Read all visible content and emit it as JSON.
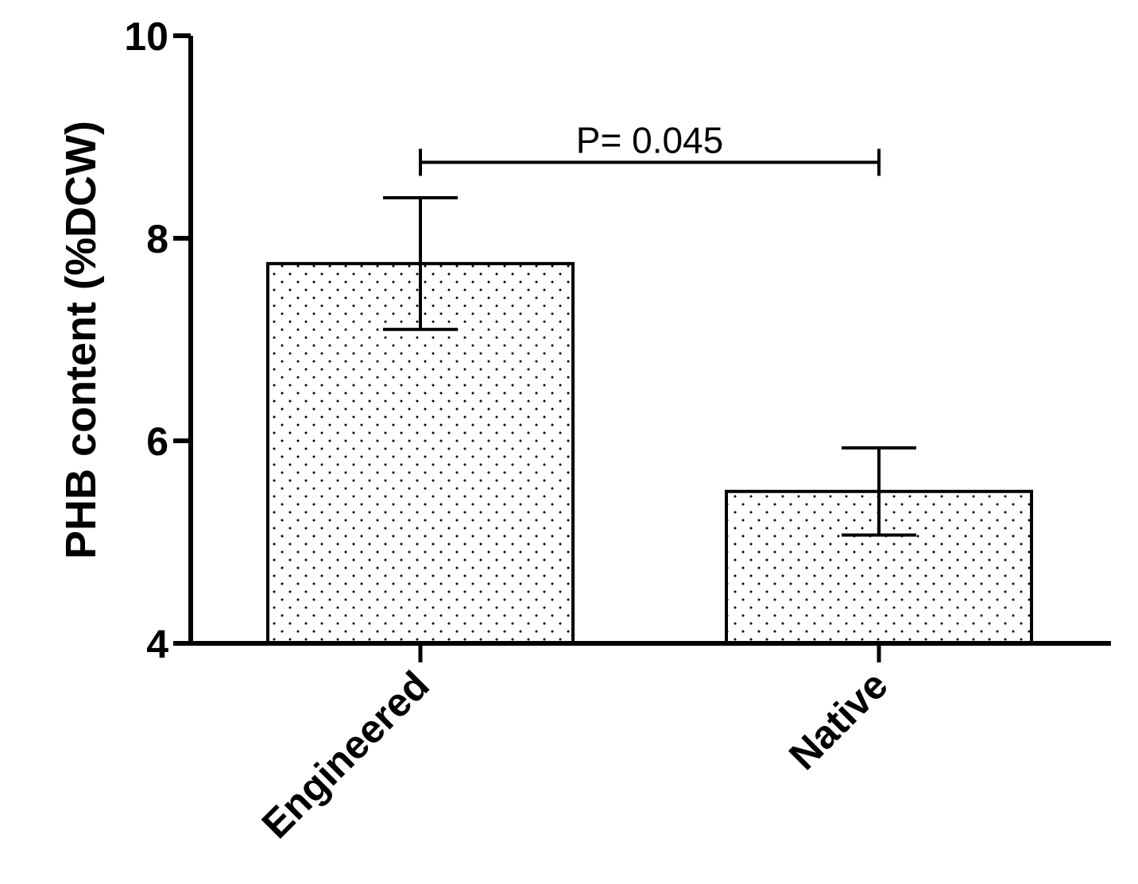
{
  "chart_data": {
    "type": "bar",
    "title": "",
    "xlabel": "",
    "ylabel": "PHB content (%DCW)",
    "ylim": [
      4,
      10
    ],
    "yticks": [
      4,
      6,
      8,
      10
    ],
    "grid": false,
    "pattern": "dotted",
    "categories": [
      "Engineered",
      "Native"
    ],
    "values": [
      7.75,
      5.5
    ],
    "errors": [
      0.65,
      0.43
    ],
    "annotations": [
      {
        "text": "P= 0.045",
        "from": "Engineered",
        "to": "Native",
        "y": 8.75
      }
    ]
  }
}
